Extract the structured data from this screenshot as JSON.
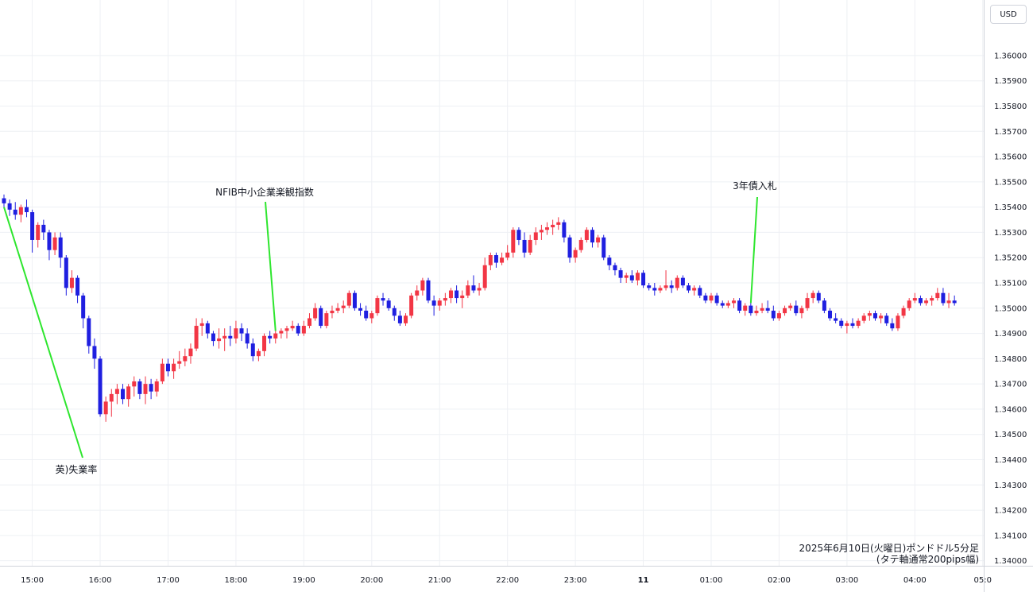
{
  "currency_button": "USD",
  "caption": {
    "line1": "2025年6月10日(火曜日)ポンドドル5分足",
    "line2": "(タテ軸通常200pips幅)"
  },
  "colors": {
    "up": "#f23645",
    "down": "#1f1fe0",
    "grid": "#eef0f4",
    "annotation": "#2ee62e",
    "axis": "#d1d4dc"
  },
  "chart_data": {
    "type": "candlestick",
    "instrument": "GBP/USD",
    "timeframe": "5m",
    "ylim": [
      1.3398,
      1.3622
    ],
    "y_ticks": [
      "1.36000",
      "1.35900",
      "1.35800",
      "1.35700",
      "1.35600",
      "1.35500",
      "1.35400",
      "1.35300",
      "1.35200",
      "1.35100",
      "1.35000",
      "1.34900",
      "1.34800",
      "1.34700",
      "1.34600",
      "1.34500",
      "1.34400",
      "1.34300",
      "1.34200",
      "1.34100",
      "1.34000"
    ],
    "x_ticks": [
      "15:00",
      "16:00",
      "17:00",
      "18:00",
      "19:00",
      "20:00",
      "21:00",
      "22:00",
      "23:00",
      "11",
      "01:00",
      "02:00",
      "03:00",
      "04:00",
      "05:0"
    ],
    "grid": true,
    "annotations": [
      {
        "text": "英)失業率",
        "bar": 0
      },
      {
        "text": "NFIB中小企業楽観指数",
        "bar": 48
      },
      {
        "text": "3年債入札",
        "bar": 132
      }
    ],
    "candles": [
      {
        "o": 1.35435,
        "h": 1.3545,
        "l": 1.354,
        "c": 1.35415
      },
      {
        "o": 1.35415,
        "h": 1.3543,
        "l": 1.35365,
        "c": 1.3539
      },
      {
        "o": 1.3539,
        "h": 1.3542,
        "l": 1.3535,
        "c": 1.3537
      },
      {
        "o": 1.3537,
        "h": 1.3541,
        "l": 1.3534,
        "c": 1.354
      },
      {
        "o": 1.354,
        "h": 1.3543,
        "l": 1.3536,
        "c": 1.3538
      },
      {
        "o": 1.3538,
        "h": 1.3539,
        "l": 1.3522,
        "c": 1.3527
      },
      {
        "o": 1.3527,
        "h": 1.3534,
        "l": 1.3524,
        "c": 1.3533
      },
      {
        "o": 1.3533,
        "h": 1.3535,
        "l": 1.3527,
        "c": 1.353
      },
      {
        "o": 1.353,
        "h": 1.3531,
        "l": 1.3519,
        "c": 1.3523
      },
      {
        "o": 1.3523,
        "h": 1.353,
        "l": 1.3521,
        "c": 1.3528
      },
      {
        "o": 1.3528,
        "h": 1.353,
        "l": 1.3516,
        "c": 1.352
      },
      {
        "o": 1.352,
        "h": 1.3521,
        "l": 1.3505,
        "c": 1.3508
      },
      {
        "o": 1.3508,
        "h": 1.3515,
        "l": 1.3506,
        "c": 1.3512
      },
      {
        "o": 1.3512,
        "h": 1.3513,
        "l": 1.3502,
        "c": 1.3505
      },
      {
        "o": 1.3505,
        "h": 1.3506,
        "l": 1.3492,
        "c": 1.3496
      },
      {
        "o": 1.3496,
        "h": 1.3497,
        "l": 1.3482,
        "c": 1.3485
      },
      {
        "o": 1.3485,
        "h": 1.3488,
        "l": 1.3476,
        "c": 1.348
      },
      {
        "o": 1.348,
        "h": 1.3481,
        "l": 1.3457,
        "c": 1.3458
      },
      {
        "o": 1.3458,
        "h": 1.3465,
        "l": 1.3455,
        "c": 1.3463
      },
      {
        "o": 1.3463,
        "h": 1.3468,
        "l": 1.3457,
        "c": 1.3466
      },
      {
        "o": 1.3466,
        "h": 1.347,
        "l": 1.3462,
        "c": 1.3468
      },
      {
        "o": 1.3468,
        "h": 1.347,
        "l": 1.3462,
        "c": 1.3464
      },
      {
        "o": 1.3464,
        "h": 1.347,
        "l": 1.3461,
        "c": 1.3469
      },
      {
        "o": 1.3469,
        "h": 1.3473,
        "l": 1.3465,
        "c": 1.3471
      },
      {
        "o": 1.3471,
        "h": 1.3472,
        "l": 1.3464,
        "c": 1.3466
      },
      {
        "o": 1.3466,
        "h": 1.3473,
        "l": 1.3462,
        "c": 1.347
      },
      {
        "o": 1.347,
        "h": 1.3472,
        "l": 1.3464,
        "c": 1.3467
      },
      {
        "o": 1.3467,
        "h": 1.3472,
        "l": 1.3465,
        "c": 1.3471
      },
      {
        "o": 1.3471,
        "h": 1.348,
        "l": 1.347,
        "c": 1.3478
      },
      {
        "o": 1.3478,
        "h": 1.348,
        "l": 1.3473,
        "c": 1.3475
      },
      {
        "o": 1.3475,
        "h": 1.348,
        "l": 1.3472,
        "c": 1.3478
      },
      {
        "o": 1.3478,
        "h": 1.3483,
        "l": 1.3476,
        "c": 1.3479
      },
      {
        "o": 1.3479,
        "h": 1.3484,
        "l": 1.3477,
        "c": 1.3481
      },
      {
        "o": 1.3481,
        "h": 1.3486,
        "l": 1.3478,
        "c": 1.3484
      },
      {
        "o": 1.3484,
        "h": 1.3496,
        "l": 1.3483,
        "c": 1.3493
      },
      {
        "o": 1.3493,
        "h": 1.3496,
        "l": 1.3489,
        "c": 1.3494
      },
      {
        "o": 1.3494,
        "h": 1.3495,
        "l": 1.3488,
        "c": 1.349
      },
      {
        "o": 1.349,
        "h": 1.3491,
        "l": 1.3485,
        "c": 1.3487
      },
      {
        "o": 1.3487,
        "h": 1.3492,
        "l": 1.3484,
        "c": 1.3488
      },
      {
        "o": 1.3488,
        "h": 1.3492,
        "l": 1.3483,
        "c": 1.3489
      },
      {
        "o": 1.3489,
        "h": 1.3493,
        "l": 1.3485,
        "c": 1.3488
      },
      {
        "o": 1.3488,
        "h": 1.3495,
        "l": 1.3486,
        "c": 1.3492
      },
      {
        "o": 1.3492,
        "h": 1.3494,
        "l": 1.3487,
        "c": 1.349
      },
      {
        "o": 1.349,
        "h": 1.3492,
        "l": 1.3484,
        "c": 1.3486
      },
      {
        "o": 1.3486,
        "h": 1.3488,
        "l": 1.3479,
        "c": 1.3481
      },
      {
        "o": 1.3481,
        "h": 1.3484,
        "l": 1.3479,
        "c": 1.3483
      },
      {
        "o": 1.3483,
        "h": 1.349,
        "l": 1.3481,
        "c": 1.3489
      },
      {
        "o": 1.3489,
        "h": 1.3491,
        "l": 1.3486,
        "c": 1.3488
      },
      {
        "o": 1.3488,
        "h": 1.3491,
        "l": 1.3486,
        "c": 1.349
      },
      {
        "o": 1.349,
        "h": 1.3492,
        "l": 1.3488,
        "c": 1.3491
      },
      {
        "o": 1.3491,
        "h": 1.3493,
        "l": 1.3488,
        "c": 1.3492
      },
      {
        "o": 1.3492,
        "h": 1.3495,
        "l": 1.3491,
        "c": 1.3493
      },
      {
        "o": 1.3493,
        "h": 1.3494,
        "l": 1.3489,
        "c": 1.349
      },
      {
        "o": 1.349,
        "h": 1.3495,
        "l": 1.3489,
        "c": 1.3493
      },
      {
        "o": 1.3493,
        "h": 1.3498,
        "l": 1.3492,
        "c": 1.3496
      },
      {
        "o": 1.3496,
        "h": 1.3502,
        "l": 1.3495,
        "c": 1.35
      },
      {
        "o": 1.35,
        "h": 1.3501,
        "l": 1.3492,
        "c": 1.3493
      },
      {
        "o": 1.3493,
        "h": 1.3499,
        "l": 1.3492,
        "c": 1.3498
      },
      {
        "o": 1.3498,
        "h": 1.3501,
        "l": 1.3496,
        "c": 1.3499
      },
      {
        "o": 1.3499,
        "h": 1.3502,
        "l": 1.3498,
        "c": 1.35
      },
      {
        "o": 1.35,
        "h": 1.3503,
        "l": 1.3498,
        "c": 1.3501
      },
      {
        "o": 1.3501,
        "h": 1.3507,
        "l": 1.35,
        "c": 1.3506
      },
      {
        "o": 1.3506,
        "h": 1.3507,
        "l": 1.3499,
        "c": 1.35
      },
      {
        "o": 1.35,
        "h": 1.3502,
        "l": 1.3497,
        "c": 1.3499
      },
      {
        "o": 1.3499,
        "h": 1.3501,
        "l": 1.3495,
        "c": 1.3496
      },
      {
        "o": 1.3496,
        "h": 1.3499,
        "l": 1.3494,
        "c": 1.3498
      },
      {
        "o": 1.3498,
        "h": 1.3505,
        "l": 1.3497,
        "c": 1.3504
      },
      {
        "o": 1.3504,
        "h": 1.3506,
        "l": 1.3501,
        "c": 1.3503
      },
      {
        "o": 1.3503,
        "h": 1.3504,
        "l": 1.3499,
        "c": 1.35
      },
      {
        "o": 1.35,
        "h": 1.3501,
        "l": 1.3495,
        "c": 1.3497
      },
      {
        "o": 1.3497,
        "h": 1.3499,
        "l": 1.3493,
        "c": 1.3494
      },
      {
        "o": 1.3494,
        "h": 1.3498,
        "l": 1.3493,
        "c": 1.3497
      },
      {
        "o": 1.3497,
        "h": 1.3506,
        "l": 1.3496,
        "c": 1.3505
      },
      {
        "o": 1.3505,
        "h": 1.3509,
        "l": 1.3503,
        "c": 1.3507
      },
      {
        "o": 1.3507,
        "h": 1.3512,
        "l": 1.3505,
        "c": 1.3511
      },
      {
        "o": 1.3511,
        "h": 1.3512,
        "l": 1.3502,
        "c": 1.3503
      },
      {
        "o": 1.3503,
        "h": 1.3505,
        "l": 1.3497,
        "c": 1.3501
      },
      {
        "o": 1.3501,
        "h": 1.3504,
        "l": 1.3499,
        "c": 1.3503
      },
      {
        "o": 1.3503,
        "h": 1.3506,
        "l": 1.3501,
        "c": 1.3504
      },
      {
        "o": 1.3504,
        "h": 1.3508,
        "l": 1.3502,
        "c": 1.3507
      },
      {
        "o": 1.3507,
        "h": 1.3509,
        "l": 1.3502,
        "c": 1.3504
      },
      {
        "o": 1.3504,
        "h": 1.3507,
        "l": 1.35,
        "c": 1.3505
      },
      {
        "o": 1.3505,
        "h": 1.3511,
        "l": 1.3504,
        "c": 1.3509
      },
      {
        "o": 1.3509,
        "h": 1.3513,
        "l": 1.3506,
        "c": 1.3507
      },
      {
        "o": 1.3507,
        "h": 1.351,
        "l": 1.3505,
        "c": 1.3508
      },
      {
        "o": 1.3508,
        "h": 1.352,
        "l": 1.3507,
        "c": 1.3517
      },
      {
        "o": 1.3517,
        "h": 1.3522,
        "l": 1.3515,
        "c": 1.3521
      },
      {
        "o": 1.3521,
        "h": 1.3522,
        "l": 1.3516,
        "c": 1.3518
      },
      {
        "o": 1.3518,
        "h": 1.3522,
        "l": 1.3517,
        "c": 1.352
      },
      {
        "o": 1.352,
        "h": 1.3525,
        "l": 1.3519,
        "c": 1.3522
      },
      {
        "o": 1.3522,
        "h": 1.3532,
        "l": 1.352,
        "c": 1.3531
      },
      {
        "o": 1.3531,
        "h": 1.3532,
        "l": 1.3525,
        "c": 1.3527
      },
      {
        "o": 1.3527,
        "h": 1.353,
        "l": 1.352,
        "c": 1.3522
      },
      {
        "o": 1.3522,
        "h": 1.3529,
        "l": 1.3521,
        "c": 1.3527
      },
      {
        "o": 1.3527,
        "h": 1.3532,
        "l": 1.3525,
        "c": 1.353
      },
      {
        "o": 1.353,
        "h": 1.3533,
        "l": 1.3527,
        "c": 1.3531
      },
      {
        "o": 1.3531,
        "h": 1.3534,
        "l": 1.3529,
        "c": 1.3532
      },
      {
        "o": 1.3532,
        "h": 1.3535,
        "l": 1.3529,
        "c": 1.3533
      },
      {
        "o": 1.3533,
        "h": 1.3536,
        "l": 1.3531,
        "c": 1.3534
      },
      {
        "o": 1.3534,
        "h": 1.3535,
        "l": 1.3526,
        "c": 1.3528
      },
      {
        "o": 1.3528,
        "h": 1.3529,
        "l": 1.3518,
        "c": 1.352
      },
      {
        "o": 1.352,
        "h": 1.3524,
        "l": 1.3518,
        "c": 1.3523
      },
      {
        "o": 1.3523,
        "h": 1.3528,
        "l": 1.3522,
        "c": 1.3527
      },
      {
        "o": 1.3527,
        "h": 1.3532,
        "l": 1.3526,
        "c": 1.3531
      },
      {
        "o": 1.3531,
        "h": 1.3532,
        "l": 1.3524,
        "c": 1.3526
      },
      {
        "o": 1.3526,
        "h": 1.3529,
        "l": 1.3524,
        "c": 1.3528
      },
      {
        "o": 1.3528,
        "h": 1.3529,
        "l": 1.3519,
        "c": 1.352
      },
      {
        "o": 1.352,
        "h": 1.3521,
        "l": 1.3515,
        "c": 1.3517
      },
      {
        "o": 1.3517,
        "h": 1.3518,
        "l": 1.3513,
        "c": 1.3515
      },
      {
        "o": 1.3515,
        "h": 1.3516,
        "l": 1.351,
        "c": 1.3512
      },
      {
        "o": 1.3512,
        "h": 1.3514,
        "l": 1.351,
        "c": 1.3513
      },
      {
        "o": 1.3513,
        "h": 1.3515,
        "l": 1.351,
        "c": 1.3511
      },
      {
        "o": 1.3511,
        "h": 1.3515,
        "l": 1.3509,
        "c": 1.3514
      },
      {
        "o": 1.3514,
        "h": 1.3515,
        "l": 1.3508,
        "c": 1.3509
      },
      {
        "o": 1.3509,
        "h": 1.351,
        "l": 1.3507,
        "c": 1.3508
      },
      {
        "o": 1.3508,
        "h": 1.351,
        "l": 1.3505,
        "c": 1.3507
      },
      {
        "o": 1.3507,
        "h": 1.3509,
        "l": 1.3506,
        "c": 1.3508
      },
      {
        "o": 1.3508,
        "h": 1.3515,
        "l": 1.3507,
        "c": 1.3509
      },
      {
        "o": 1.3509,
        "h": 1.3511,
        "l": 1.3506,
        "c": 1.3508
      },
      {
        "o": 1.3508,
        "h": 1.3513,
        "l": 1.3507,
        "c": 1.3512
      },
      {
        "o": 1.3512,
        "h": 1.3513,
        "l": 1.3508,
        "c": 1.3509
      },
      {
        "o": 1.3509,
        "h": 1.351,
        "l": 1.3506,
        "c": 1.3507
      },
      {
        "o": 1.3507,
        "h": 1.3509,
        "l": 1.3505,
        "c": 1.3508
      },
      {
        "o": 1.3508,
        "h": 1.3509,
        "l": 1.3504,
        "c": 1.3505
      },
      {
        "o": 1.3505,
        "h": 1.3506,
        "l": 1.3502,
        "c": 1.3503
      },
      {
        "o": 1.3503,
        "h": 1.3506,
        "l": 1.3502,
        "c": 1.3505
      },
      {
        "o": 1.3505,
        "h": 1.3506,
        "l": 1.3501,
        "c": 1.3502
      },
      {
        "o": 1.3502,
        "h": 1.3503,
        "l": 1.35,
        "c": 1.3501
      },
      {
        "o": 1.3501,
        "h": 1.3503,
        "l": 1.35,
        "c": 1.3502
      },
      {
        "o": 1.3502,
        "h": 1.3504,
        "l": 1.35,
        "c": 1.3503
      },
      {
        "o": 1.3503,
        "h": 1.3504,
        "l": 1.3498,
        "c": 1.3499
      },
      {
        "o": 1.3499,
        "h": 1.3502,
        "l": 1.3497,
        "c": 1.3501
      },
      {
        "o": 1.3501,
        "h": 1.3502,
        "l": 1.3497,
        "c": 1.3498
      },
      {
        "o": 1.3498,
        "h": 1.3501,
        "l": 1.3497,
        "c": 1.3499
      },
      {
        "o": 1.3499,
        "h": 1.3502,
        "l": 1.3498,
        "c": 1.35
      },
      {
        "o": 1.35,
        "h": 1.3503,
        "l": 1.3498,
        "c": 1.3499
      },
      {
        "o": 1.3499,
        "h": 1.3501,
        "l": 1.3495,
        "c": 1.3496
      },
      {
        "o": 1.3496,
        "h": 1.3499,
        "l": 1.3495,
        "c": 1.3498
      },
      {
        "o": 1.3498,
        "h": 1.3501,
        "l": 1.3497,
        "c": 1.35
      },
      {
        "o": 1.35,
        "h": 1.3502,
        "l": 1.3499,
        "c": 1.3501
      },
      {
        "o": 1.3501,
        "h": 1.3503,
        "l": 1.3497,
        "c": 1.3498
      },
      {
        "o": 1.3498,
        "h": 1.3501,
        "l": 1.3496,
        "c": 1.35
      },
      {
        "o": 1.35,
        "h": 1.3506,
        "l": 1.3499,
        "c": 1.3504
      },
      {
        "o": 1.3504,
        "h": 1.3507,
        "l": 1.3502,
        "c": 1.3506
      },
      {
        "o": 1.3506,
        "h": 1.3507,
        "l": 1.3502,
        "c": 1.3503
      },
      {
        "o": 1.3503,
        "h": 1.3504,
        "l": 1.3498,
        "c": 1.3499
      },
      {
        "o": 1.3499,
        "h": 1.35,
        "l": 1.3495,
        "c": 1.3496
      },
      {
        "o": 1.3496,
        "h": 1.3498,
        "l": 1.3494,
        "c": 1.3495
      },
      {
        "o": 1.3495,
        "h": 1.3496,
        "l": 1.3492,
        "c": 1.3493
      },
      {
        "o": 1.3493,
        "h": 1.3495,
        "l": 1.349,
        "c": 1.3494
      },
      {
        "o": 1.3494,
        "h": 1.3496,
        "l": 1.3492,
        "c": 1.3493
      },
      {
        "o": 1.3493,
        "h": 1.3496,
        "l": 1.3492,
        "c": 1.3495
      },
      {
        "o": 1.3495,
        "h": 1.3498,
        "l": 1.3494,
        "c": 1.3497
      },
      {
        "o": 1.3497,
        "h": 1.3499,
        "l": 1.3495,
        "c": 1.3498
      },
      {
        "o": 1.3498,
        "h": 1.3499,
        "l": 1.3495,
        "c": 1.3496
      },
      {
        "o": 1.3496,
        "h": 1.3498,
        "l": 1.3494,
        "c": 1.3497
      },
      {
        "o": 1.3497,
        "h": 1.3498,
        "l": 1.3493,
        "c": 1.3494
      },
      {
        "o": 1.3494,
        "h": 1.3496,
        "l": 1.3491,
        "c": 1.3492
      },
      {
        "o": 1.3492,
        "h": 1.3498,
        "l": 1.3491,
        "c": 1.3497
      },
      {
        "o": 1.3497,
        "h": 1.3501,
        "l": 1.3496,
        "c": 1.35
      },
      {
        "o": 1.35,
        "h": 1.3504,
        "l": 1.3499,
        "c": 1.3503
      },
      {
        "o": 1.3503,
        "h": 1.3506,
        "l": 1.3502,
        "c": 1.3504
      },
      {
        "o": 1.3504,
        "h": 1.3505,
        "l": 1.3501,
        "c": 1.3502
      },
      {
        "o": 1.3502,
        "h": 1.3504,
        "l": 1.3501,
        "c": 1.3503
      },
      {
        "o": 1.3503,
        "h": 1.3505,
        "l": 1.3501,
        "c": 1.3504
      },
      {
        "o": 1.3504,
        "h": 1.3508,
        "l": 1.3503,
        "c": 1.3506
      },
      {
        "o": 1.3506,
        "h": 1.3508,
        "l": 1.3501,
        "c": 1.3502
      },
      {
        "o": 1.3502,
        "h": 1.3506,
        "l": 1.35,
        "c": 1.3503
      },
      {
        "o": 1.3503,
        "h": 1.3505,
        "l": 1.3501,
        "c": 1.3502
      }
    ]
  }
}
